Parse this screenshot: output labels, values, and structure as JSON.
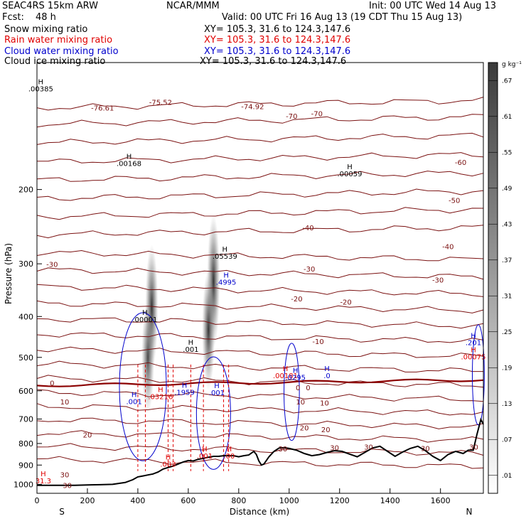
{
  "header": {
    "model": "SEAC4RS 15km ARW",
    "org": "NCAR/MMM",
    "init": "Init: 00 UTC Wed 14 Aug 13",
    "fcst_label": "Fcst:",
    "fcst_value": "48 h",
    "valid": "Valid: 00 UTC Fri 16 Aug 13 (19 CDT Thu 15 Aug 13)"
  },
  "fields": [
    {
      "name": "Snow mixing ratio",
      "xy": "XY= 105.3, 31.6 to 124.3,147.6",
      "color": "#000000"
    },
    {
      "name": "Rain water mixing ratio",
      "xy": "XY= 105.3, 31.6 to 124.3,147.6",
      "color": "#e00000"
    },
    {
      "name": "Cloud water mixing ratio",
      "xy": "XY= 105.3, 31.6 to 124.3,147.6",
      "color": "#0000cc"
    },
    {
      "name": "Cloud ice mixing ratio",
      "xy": "XY= 105.3, 31.6 to 124.3,147.6",
      "color": "#000000"
    }
  ],
  "chart_data": {
    "type": "heatmap",
    "xlabel": "Distance (km)",
    "ylabel": "Pressure (hPa)",
    "x_ticks": [
      0,
      200,
      400,
      600,
      800,
      1000,
      1200,
      1400,
      1600
    ],
    "y_ticks": [
      200,
      300,
      400,
      500,
      600,
      700,
      800,
      900,
      1000
    ],
    "x_range": [
      0,
      1770
    ],
    "y_range": [
      100,
      1050
    ],
    "y_scale": "log",
    "endpoints": {
      "left": "S",
      "right": "N"
    },
    "colorbar": {
      "unit": "g kg⁻¹",
      "ticks": [
        ".01",
        ".07",
        ".13",
        ".19",
        ".25",
        ".31",
        ".37",
        ".43",
        ".49",
        ".55",
        ".61",
        ".67"
      ]
    },
    "snow_maxima": [
      {
        "x": 455,
        "p": 380,
        "value": 0.55
      },
      {
        "x": 440,
        "p": 500,
        "value": 0.4
      },
      {
        "x": 700,
        "p": 330,
        "value": 0.65
      },
      {
        "x": 680,
        "p": 430,
        "value": 0.5
      }
    ],
    "temperature_labels": [
      {
        "text": "-76.61",
        "x": 260,
        "p": 130
      },
      {
        "text": "-75.52",
        "x": 490,
        "p": 126
      },
      {
        "text": "-74.92",
        "x": 855,
        "p": 129
      },
      {
        "text": "-70",
        "x": 1010,
        "p": 136
      },
      {
        "text": "-70",
        "x": 1110,
        "p": 134
      },
      {
        "text": "-60",
        "x": 1680,
        "p": 175
      },
      {
        "text": "-50",
        "x": 1655,
        "p": 215
      },
      {
        "text": "-40",
        "x": 1075,
        "p": 250
      },
      {
        "text": "-40",
        "x": 1630,
        "p": 277
      },
      {
        "text": "-30",
        "x": 60,
        "p": 305
      },
      {
        "text": "-30",
        "x": 1080,
        "p": 313
      },
      {
        "text": "-30",
        "x": 1590,
        "p": 332
      },
      {
        "text": "-20",
        "x": 1030,
        "p": 368
      },
      {
        "text": "-20",
        "x": 1225,
        "p": 375
      },
      {
        "text": "-10",
        "x": 1115,
        "p": 465
      },
      {
        "text": "0",
        "x": 60,
        "p": 583
      },
      {
        "text": "0",
        "x": 1035,
        "p": 598
      },
      {
        "text": "0",
        "x": 1075,
        "p": 598
      },
      {
        "text": "10",
        "x": 110,
        "p": 647
      },
      {
        "text": "10",
        "x": 1045,
        "p": 647
      },
      {
        "text": "10",
        "x": 1140,
        "p": 650
      },
      {
        "text": "20",
        "x": 1060,
        "p": 745
      },
      {
        "text": "20",
        "x": 1145,
        "p": 752
      },
      {
        "text": "20",
        "x": 200,
        "p": 775
      },
      {
        "text": "30",
        "x": 975,
        "p": 835
      },
      {
        "text": "30",
        "x": 1180,
        "p": 830
      },
      {
        "text": "30",
        "x": 1315,
        "p": 827
      },
      {
        "text": "30",
        "x": 1540,
        "p": 833
      },
      {
        "text": "30",
        "x": 1732,
        "p": 827
      },
      {
        "text": "30",
        "x": 110,
        "p": 962
      },
      {
        "text": "30",
        "x": 120,
        "p": 1020
      }
    ],
    "extrema": [
      {
        "kind": "H",
        "value": ".00385",
        "x": 15,
        "p": 117,
        "color": "#000000"
      },
      {
        "kind": "H",
        "value": ".00168",
        "x": 365,
        "p": 176,
        "color": "#000000"
      },
      {
        "kind": "H",
        "value": ".00059",
        "x": 1240,
        "p": 186,
        "color": "#000000"
      },
      {
        "kind": "H",
        "value": ".05539",
        "x": 745,
        "p": 292,
        "color": "#000000"
      },
      {
        "kind": "H",
        "value": ".4995",
        "x": 750,
        "p": 336,
        "color": "#0000cc"
      },
      {
        "kind": "H",
        "value": ".00001",
        "x": 428,
        "p": 412,
        "color": "#000000"
      },
      {
        "kind": "H",
        "value": ".001",
        "x": 610,
        "p": 485,
        "color": "#000000"
      },
      {
        "kind": "H",
        "value": ".00181",
        "x": 985,
        "p": 560,
        "color": "#e00000"
      },
      {
        "kind": "H",
        "value": ".0295",
        "x": 1025,
        "p": 565,
        "color": "#0000cc"
      },
      {
        "kind": "H",
        "value": ".0",
        "x": 1150,
        "p": 560,
        "color": "#0000cc"
      },
      {
        "kind": "H",
        "value": ".201",
        "x": 1770,
        "p": 468,
        "color": "#0000cc"
      },
      {
        "kind": "H",
        "value": ".00075",
        "x": 1760,
        "p": 505,
        "color": "#e00000"
      },
      {
        "kind": "H",
        "value": ".1959",
        "x": 585,
        "p": 613,
        "color": "#0000cc"
      },
      {
        "kind": "H",
        "value": ".001",
        "x": 713,
        "p": 615,
        "color": "#0000cc"
      },
      {
        "kind": "H",
        "value": ".001",
        "x": 385,
        "p": 645,
        "color": "#0000cc"
      },
      {
        "kind": "H",
        "value": ".03216",
        "x": 490,
        "p": 628,
        "color": "#e00000"
      },
      {
        "kind": "H",
        "value": ".001",
        "x": 665,
        "p": 868,
        "color": "#e00000"
      },
      {
        "kind": "H",
        "value": ".003",
        "x": 520,
        "p": 908,
        "color": "#e00000"
      },
      {
        "kind": "H",
        "value": ".00",
        "x": 762,
        "p": 868,
        "color": "#e00000"
      },
      {
        "kind": "H",
        "value": "31.3",
        "x": 25,
        "p": 995,
        "color": "#e00000"
      }
    ],
    "terrain": {
      "x": [
        0,
        50,
        100,
        150,
        200,
        250,
        300,
        350,
        380,
        400,
        420,
        440,
        460,
        480,
        500,
        520,
        540,
        560,
        580,
        600,
        620,
        640,
        660,
        680,
        700,
        720,
        740,
        760,
        780,
        800,
        820,
        840,
        860,
        870,
        880,
        890,
        900,
        920,
        940,
        960,
        980,
        1000,
        1030,
        1060,
        1090,
        1120,
        1150,
        1180,
        1210,
        1240,
        1270,
        1300,
        1330,
        1360,
        1390,
        1420,
        1450,
        1480,
        1510,
        1540,
        1570,
        1600,
        1630,
        1660,
        1690,
        1710,
        1730,
        1745,
        1760,
        1770
      ],
      "p": [
        1005,
        1005,
        1005,
        1005,
        1003,
        1002,
        1000,
        990,
        975,
        960,
        955,
        950,
        945,
        935,
        920,
        912,
        905,
        895,
        885,
        878,
        880,
        872,
        868,
        862,
        858,
        858,
        855,
        855,
        855,
        860,
        855,
        852,
        835,
        850,
        880,
        900,
        895,
        860,
        835,
        820,
        818,
        822,
        830,
        845,
        855,
        850,
        840,
        832,
        835,
        848,
        860,
        840,
        820,
        812,
        835,
        858,
        838,
        822,
        812,
        832,
        858,
        878,
        850,
        835,
        845,
        830,
        830,
        760,
        702,
        720
      ]
    }
  }
}
